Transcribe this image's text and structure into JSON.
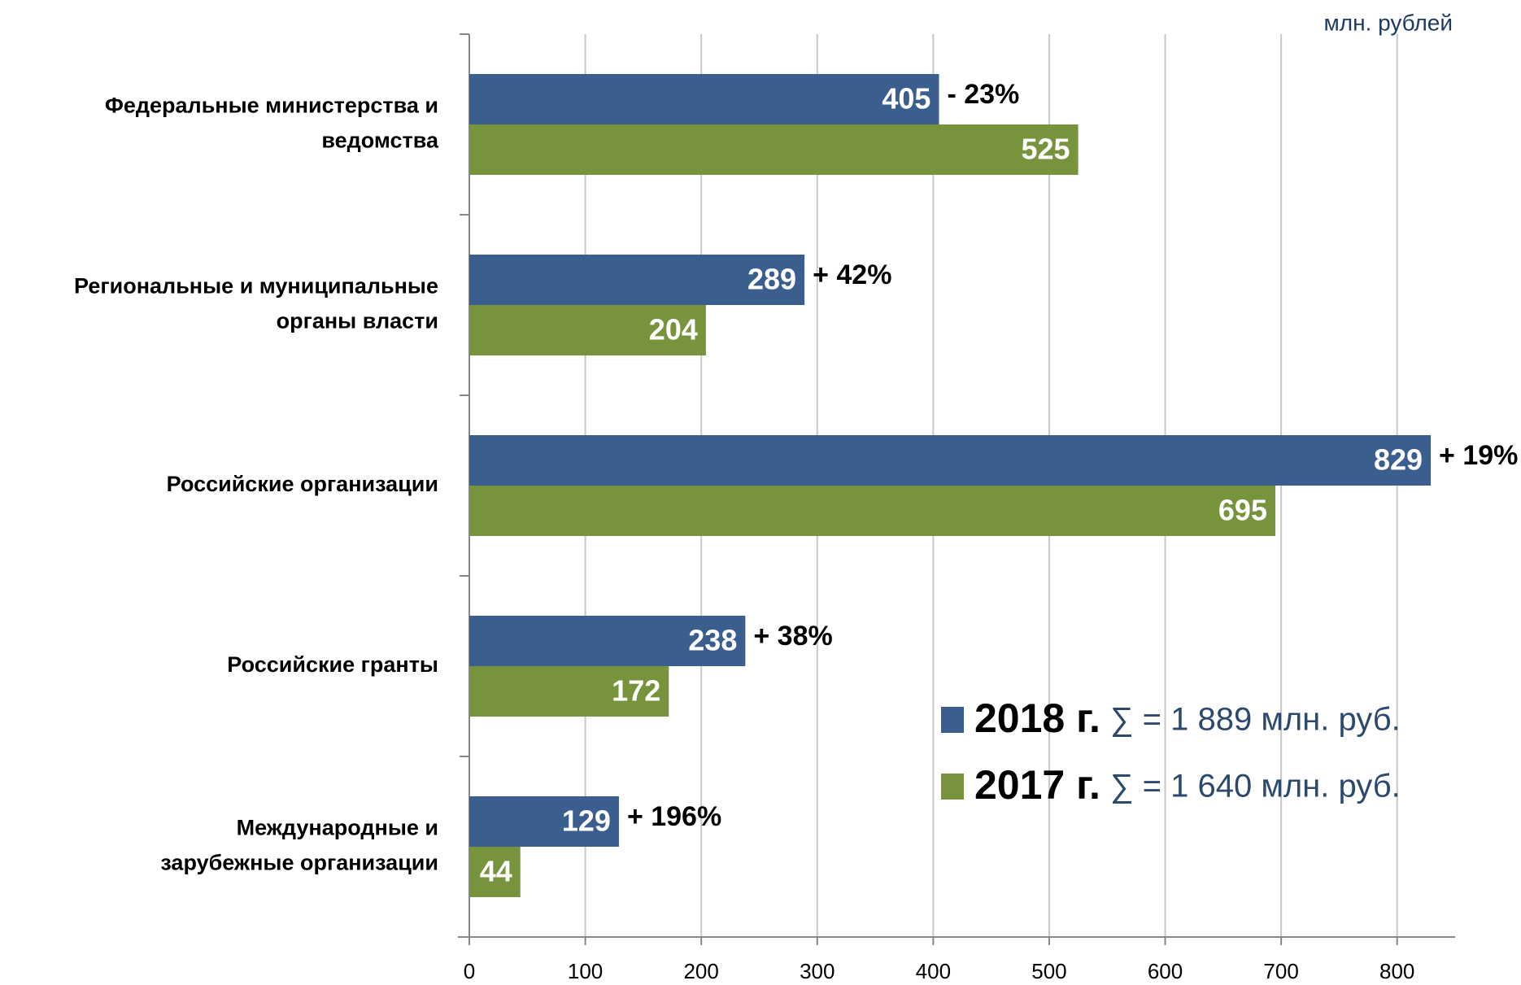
{
  "chart_data": {
    "type": "barh",
    "unit_label": "млн. рублей",
    "categories": [
      [
        "Федеральные министерства и",
        "ведомства"
      ],
      [
        "Региональные и муниципальные",
        "органы власти"
      ],
      [
        "Российские организации"
      ],
      [
        "Российские гранты"
      ],
      [
        "Международные и",
        "зарубежные организации"
      ]
    ],
    "series": [
      {
        "name": "2018 г.",
        "color": "#3a5f8f",
        "total_label": "∑ = 1 889 млн. руб.",
        "values": [
          405,
          289,
          829,
          238,
          129
        ]
      },
      {
        "name": "2017 г.",
        "color": "#77933c",
        "total_label": "∑ = 1 640 млн. руб.",
        "values": [
          525,
          204,
          695,
          172,
          44
        ]
      }
    ],
    "annotations": [
      "- 23%",
      "+ 42%",
      "+ 19%",
      "+ 38%",
      "+ 196%"
    ],
    "xlim": [
      0,
      850
    ],
    "xticks": [
      0,
      100,
      200,
      300,
      400,
      500,
      600,
      700,
      800
    ],
    "grid": true
  }
}
